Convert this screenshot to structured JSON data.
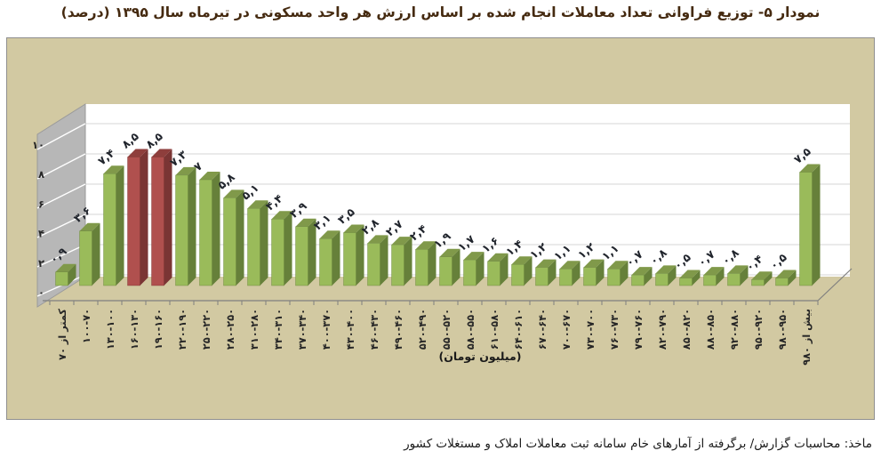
{
  "page": {
    "title": "نمودار ۵- توزیع فراوانی تعداد معاملات انجام شده بر اساس ارزش هر واحد مسکونی در تیرماه سال ۱۳۹۵ (درصد)",
    "source_note": "ماخذ: محاسبات گزارش/ برگرفته از آمارهای خام سامانه ثبت معاملات املاک و مستغلات کشور"
  },
  "chart_data": {
    "type": "bar",
    "projection": "3d",
    "title": "",
    "xlabel": "(میلیون تومان)",
    "ylabel": "",
    "unit": "درصد",
    "ylim": [
      0,
      10
    ],
    "grid": true,
    "legend": false,
    "yticks": {
      "values": [
        0,
        2,
        4,
        6,
        8,
        10
      ],
      "labels": [
        "۰",
        "۲",
        "۴",
        "۶",
        "۸",
        "۱۰"
      ]
    },
    "categories": [
      "کمتر از ۷۰",
      "۷۰-۱۰۰",
      "۱۰۰-۱۳۰",
      "۱۳۰-۱۶۰",
      "۱۶۰-۱۹۰",
      "۱۹۰-۲۲۰",
      "۲۲۰-۲۵۰",
      "۲۵۰-۲۸۰",
      "۲۸۰-۳۱۰",
      "۳۱۰-۳۴۰",
      "۳۴۰-۳۷۰",
      "۳۷۰-۴۰۰",
      "۴۰۰-۴۳۰",
      "۴۳۰-۴۶۰",
      "۴۶۰-۴۹۰",
      "۴۹۰-۵۲۰",
      "۵۲۰-۵۵۰",
      "۵۵۰-۵۸۰",
      "۵۸۰-۶۱۰",
      "۶۱۰-۶۴۰",
      "۶۴۰-۶۷۰",
      "۶۷۰-۷۰۰",
      "۷۰۰-۷۳۰",
      "۷۳۰-۷۶۰",
      "۷۶۰-۷۹۰",
      "۷۹۰-۸۲۰",
      "۸۲۰-۸۵۰",
      "۸۵۰-۸۸۰",
      "۸۸۰-۹۲۰",
      "۹۲۰-۹۵۰",
      "۹۵۰-۹۸۰",
      "بیش از ۹۸۰"
    ],
    "values": [
      0.9,
      3.6,
      7.4,
      8.5,
      8.5,
      7.3,
      7,
      5.8,
      5.1,
      4.4,
      3.9,
      3.1,
      3.5,
      2.8,
      2.7,
      2.4,
      1.9,
      1.7,
      1.6,
      1.4,
      1.2,
      1.1,
      1.2,
      1.1,
      0.7,
      0.8,
      0.5,
      0.7,
      0.8,
      0.4,
      0.5,
      7.5
    ],
    "value_labels": [
      "۰,۹",
      "۳,۶",
      "۷,۴",
      "۸,۵",
      "۸,۵",
      "۷,۳",
      "۷",
      "۵,۸",
      "۵,۱",
      "۴,۴",
      "۳,۹",
      "۳,۱",
      "۳,۵",
      "۲,۸",
      "۲,۷",
      "۲,۴",
      "۱,۹",
      "۱,۷",
      "۱,۶",
      "۱,۴",
      "۱,۲",
      "۱,۱",
      "۱,۲",
      "۱,۱",
      "۰,۷",
      "۰,۸",
      "۰,۵",
      "۰,۷",
      "۰,۸",
      "۰,۴",
      "۰,۵",
      "۷,۵"
    ],
    "highlighted_bars": [
      3,
      4
    ],
    "colors": {
      "bar_front": "#9abb5a",
      "bar_side": "#66803a",
      "bar_top": "#80994a",
      "highlight_front": "#b0504e",
      "highlight_side": "#7a3534",
      "highlight_top": "#8e3e3c",
      "plot_bg": "#d2c9a2",
      "wall_back": "#ffffff",
      "wall_side": "#b7b7b7",
      "gridline": "#d4d4d4",
      "axis": "#7f7f7f",
      "label_text": "#20242c",
      "title_text": "#452a10"
    }
  }
}
